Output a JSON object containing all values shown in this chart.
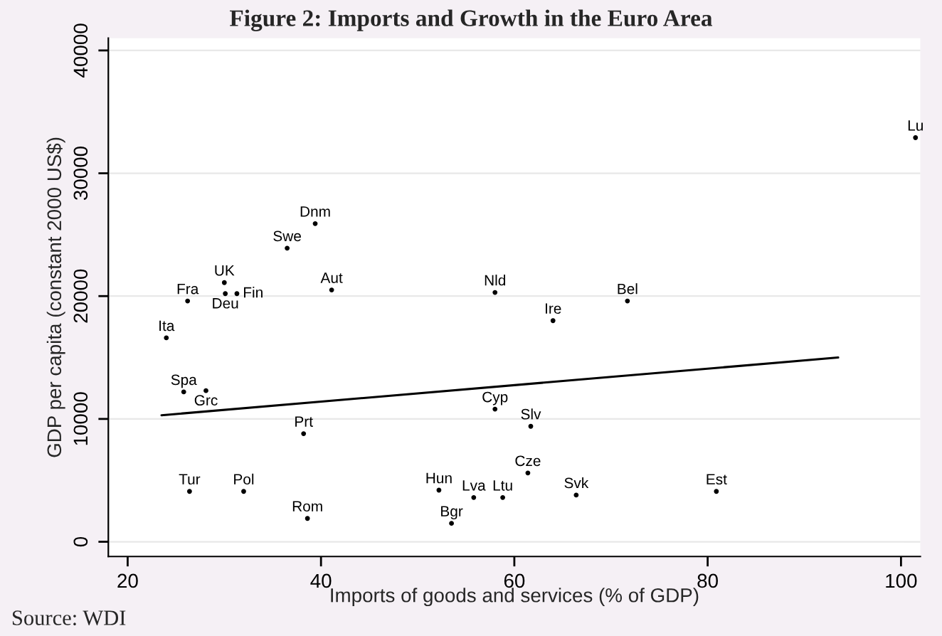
{
  "chart_data": {
    "type": "scatter",
    "title": "Figure 2: Imports and Growth in the Euro Area",
    "xlabel": "Imports of goods and services (% of GDP)",
    "ylabel": "GDP per capita (constant 2000 US$)",
    "annotations": [
      "Source: WDI"
    ],
    "xlim": [
      18,
      102
    ],
    "xticks": [
      20,
      40,
      60,
      80,
      100
    ],
    "ylim": [
      -1200,
      41000
    ],
    "yticks": [
      0,
      10000,
      20000,
      30000,
      40000
    ],
    "grid": "y",
    "legend": false,
    "series": [
      {
        "marker": "circle",
        "color": "#000000",
        "x": [
          39.4,
          36.5,
          30.0,
          30.1,
          31.3,
          26.2,
          41.1,
          24.0,
          25.8,
          28.1,
          38.2,
          26.4,
          32.0,
          38.6,
          52.2,
          55.8,
          58.8,
          53.5,
          61.4,
          66.4,
          80.9,
          58.0,
          61.7,
          58.0,
          64.0,
          71.7,
          101.5
        ],
        "values": [
          25900,
          23900,
          21100,
          20200,
          20200,
          19600,
          20500,
          16600,
          12200,
          12300,
          8800,
          4100,
          4100,
          1900,
          4200,
          3600,
          3600,
          1500,
          5600,
          3800,
          4100,
          10800,
          9400,
          20300,
          18000,
          19600,
          32900
        ],
        "value_labels": [
          "Dnm",
          "Swe",
          "UK",
          "Deu",
          "Fin",
          "Fra",
          "Aut",
          "Ita",
          "Spa",
          "Grc",
          "Prt",
          "Tur",
          "Pol",
          "Rom",
          "Hun",
          "Lva",
          "Ltu",
          "Bgr",
          "Cze",
          "Svk",
          "Est",
          "Cyp",
          "Slv",
          "Nld",
          "Ire",
          "Bel",
          "Lu"
        ]
      },
      {
        "type": "line",
        "marker": "none",
        "line_style": "solid",
        "color": "#000000",
        "x": [
          23.5,
          93.5
        ],
        "values": [
          10300,
          15000
        ]
      }
    ]
  }
}
